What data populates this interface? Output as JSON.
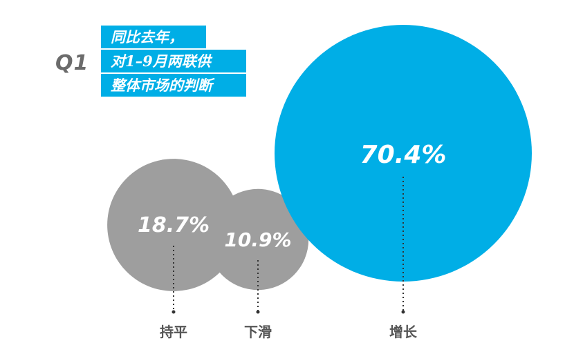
{
  "header": {
    "q_label": "Q1",
    "title_lines": [
      "同比去年，",
      "对1–9月两联供",
      "整体市场的判断"
    ]
  },
  "colors": {
    "highlight": "#00aee6",
    "neutral": "#9e9e9e",
    "label": "#555555"
  },
  "chart_data": {
    "type": "bubble",
    "unit": "%",
    "categories": [
      "持平",
      "下滑",
      "增长"
    ],
    "values": [
      18.7,
      10.9,
      70.4
    ],
    "value_labels": [
      "18.7%",
      "10.9%",
      "70.4%"
    ],
    "highlighted": "增长"
  }
}
